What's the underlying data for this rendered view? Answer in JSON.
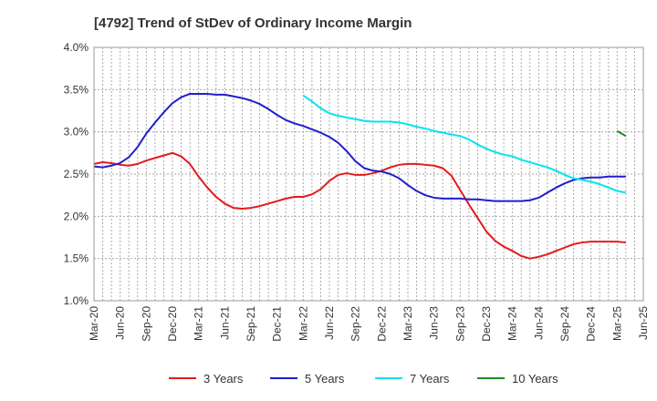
{
  "chart_data": {
    "type": "line",
    "title": "[4792]  Trend of StDev of Ordinary Income Margin",
    "xlabel": "",
    "ylabel": "",
    "ylim": [
      1.0,
      4.0
    ],
    "y_ticks": [
      "1.0%",
      "1.5%",
      "2.0%",
      "2.5%",
      "3.0%",
      "3.5%",
      "4.0%"
    ],
    "x_ticks": [
      "Mar-20",
      "Jun-20",
      "Sep-20",
      "Dec-20",
      "Mar-21",
      "Jun-21",
      "Sep-21",
      "Dec-21",
      "Mar-22",
      "Jun-22",
      "Sep-22",
      "Dec-22",
      "Mar-23",
      "Jun-23",
      "Sep-23",
      "Dec-23",
      "Mar-24",
      "Jun-24",
      "Sep-24",
      "Dec-24",
      "Mar-25",
      "Jun-25"
    ],
    "x_unit": "month",
    "grid": true,
    "legend_position": "bottom",
    "series": [
      {
        "name": "3 Years",
        "color": "#e31a1c",
        "points": [
          [
            "2020-03",
            2.62
          ],
          [
            "2020-04",
            2.64
          ],
          [
            "2020-05",
            2.63
          ],
          [
            "2020-06",
            2.61
          ],
          [
            "2020-07",
            2.6
          ],
          [
            "2020-08",
            2.62
          ],
          [
            "2020-09",
            2.66
          ],
          [
            "2020-10",
            2.69
          ],
          [
            "2020-11",
            2.72
          ],
          [
            "2020-12",
            2.75
          ],
          [
            "2021-01",
            2.71
          ],
          [
            "2021-02",
            2.62
          ],
          [
            "2021-03",
            2.47
          ],
          [
            "2021-04",
            2.34
          ],
          [
            "2021-05",
            2.23
          ],
          [
            "2021-06",
            2.15
          ],
          [
            "2021-07",
            2.1
          ],
          [
            "2021-08",
            2.09
          ],
          [
            "2021-09",
            2.1
          ],
          [
            "2021-10",
            2.12
          ],
          [
            "2021-11",
            2.15
          ],
          [
            "2021-12",
            2.18
          ],
          [
            "2022-01",
            2.21
          ],
          [
            "2022-02",
            2.23
          ],
          [
            "2022-03",
            2.23
          ],
          [
            "2022-04",
            2.26
          ],
          [
            "2022-05",
            2.32
          ],
          [
            "2022-06",
            2.42
          ],
          [
            "2022-07",
            2.49
          ],
          [
            "2022-08",
            2.51
          ],
          [
            "2022-09",
            2.49
          ],
          [
            "2022-10",
            2.49
          ],
          [
            "2022-11",
            2.51
          ],
          [
            "2022-12",
            2.54
          ],
          [
            "2023-01",
            2.58
          ],
          [
            "2023-02",
            2.61
          ],
          [
            "2023-03",
            2.62
          ],
          [
            "2023-04",
            2.62
          ],
          [
            "2023-05",
            2.61
          ],
          [
            "2023-06",
            2.6
          ],
          [
            "2023-07",
            2.57
          ],
          [
            "2023-08",
            2.48
          ],
          [
            "2023-09",
            2.31
          ],
          [
            "2023-10",
            2.14
          ],
          [
            "2023-11",
            1.98
          ],
          [
            "2023-12",
            1.82
          ],
          [
            "2024-01",
            1.71
          ],
          [
            "2024-02",
            1.64
          ],
          [
            "2024-03",
            1.59
          ],
          [
            "2024-04",
            1.53
          ],
          [
            "2024-05",
            1.5
          ],
          [
            "2024-06",
            1.52
          ],
          [
            "2024-07",
            1.55
          ],
          [
            "2024-08",
            1.59
          ],
          [
            "2024-09",
            1.63
          ],
          [
            "2024-10",
            1.67
          ],
          [
            "2024-11",
            1.69
          ],
          [
            "2024-12",
            1.7
          ],
          [
            "2025-01",
            1.7
          ],
          [
            "2025-02",
            1.7
          ],
          [
            "2025-03",
            1.7
          ],
          [
            "2025-04",
            1.69
          ]
        ]
      },
      {
        "name": "5 Years",
        "color": "#1f1fcc",
        "points": [
          [
            "2020-03",
            2.59
          ],
          [
            "2020-04",
            2.58
          ],
          [
            "2020-05",
            2.6
          ],
          [
            "2020-06",
            2.63
          ],
          [
            "2020-07",
            2.7
          ],
          [
            "2020-08",
            2.82
          ],
          [
            "2020-09",
            2.98
          ],
          [
            "2020-10",
            3.11
          ],
          [
            "2020-11",
            3.23
          ],
          [
            "2020-12",
            3.34
          ],
          [
            "2021-01",
            3.41
          ],
          [
            "2021-02",
            3.45
          ],
          [
            "2021-03",
            3.45
          ],
          [
            "2021-04",
            3.45
          ],
          [
            "2021-05",
            3.44
          ],
          [
            "2021-06",
            3.44
          ],
          [
            "2021-07",
            3.42
          ],
          [
            "2021-08",
            3.4
          ],
          [
            "2021-09",
            3.37
          ],
          [
            "2021-10",
            3.33
          ],
          [
            "2021-11",
            3.27
          ],
          [
            "2021-12",
            3.2
          ],
          [
            "2022-01",
            3.14
          ],
          [
            "2022-02",
            3.1
          ],
          [
            "2022-03",
            3.07
          ],
          [
            "2022-04",
            3.03
          ],
          [
            "2022-05",
            2.99
          ],
          [
            "2022-06",
            2.94
          ],
          [
            "2022-07",
            2.87
          ],
          [
            "2022-08",
            2.77
          ],
          [
            "2022-09",
            2.65
          ],
          [
            "2022-10",
            2.57
          ],
          [
            "2022-11",
            2.54
          ],
          [
            "2022-12",
            2.53
          ],
          [
            "2023-01",
            2.5
          ],
          [
            "2023-02",
            2.45
          ],
          [
            "2023-03",
            2.37
          ],
          [
            "2023-04",
            2.3
          ],
          [
            "2023-05",
            2.25
          ],
          [
            "2023-06",
            2.22
          ],
          [
            "2023-07",
            2.21
          ],
          [
            "2023-08",
            2.21
          ],
          [
            "2023-09",
            2.21
          ],
          [
            "2023-10",
            2.2
          ],
          [
            "2023-11",
            2.2
          ],
          [
            "2023-12",
            2.19
          ],
          [
            "2024-01",
            2.18
          ],
          [
            "2024-02",
            2.18
          ],
          [
            "2024-03",
            2.18
          ],
          [
            "2024-04",
            2.18
          ],
          [
            "2024-05",
            2.19
          ],
          [
            "2024-06",
            2.22
          ],
          [
            "2024-07",
            2.28
          ],
          [
            "2024-08",
            2.34
          ],
          [
            "2024-09",
            2.39
          ],
          [
            "2024-10",
            2.43
          ],
          [
            "2024-11",
            2.45
          ],
          [
            "2024-12",
            2.46
          ],
          [
            "2025-01",
            2.46
          ],
          [
            "2025-02",
            2.47
          ],
          [
            "2025-03",
            2.47
          ],
          [
            "2025-04",
            2.47
          ]
        ]
      },
      {
        "name": "7 Years",
        "color": "#00e5ee",
        "points": [
          [
            "2022-03",
            3.43
          ],
          [
            "2022-04",
            3.36
          ],
          [
            "2022-05",
            3.28
          ],
          [
            "2022-06",
            3.22
          ],
          [
            "2022-07",
            3.19
          ],
          [
            "2022-08",
            3.17
          ],
          [
            "2022-09",
            3.15
          ],
          [
            "2022-10",
            3.13
          ],
          [
            "2022-11",
            3.12
          ],
          [
            "2022-12",
            3.12
          ],
          [
            "2023-01",
            3.12
          ],
          [
            "2023-02",
            3.11
          ],
          [
            "2023-03",
            3.09
          ],
          [
            "2023-04",
            3.06
          ],
          [
            "2023-05",
            3.04
          ],
          [
            "2023-06",
            3.01
          ],
          [
            "2023-07",
            2.99
          ],
          [
            "2023-08",
            2.97
          ],
          [
            "2023-09",
            2.95
          ],
          [
            "2023-10",
            2.91
          ],
          [
            "2023-11",
            2.85
          ],
          [
            "2023-12",
            2.8
          ],
          [
            "2024-01",
            2.76
          ],
          [
            "2024-02",
            2.73
          ],
          [
            "2024-03",
            2.71
          ],
          [
            "2024-04",
            2.67
          ],
          [
            "2024-05",
            2.64
          ],
          [
            "2024-06",
            2.61
          ],
          [
            "2024-07",
            2.58
          ],
          [
            "2024-08",
            2.54
          ],
          [
            "2024-09",
            2.49
          ],
          [
            "2024-10",
            2.45
          ],
          [
            "2024-11",
            2.43
          ],
          [
            "2024-12",
            2.41
          ],
          [
            "2025-01",
            2.38
          ],
          [
            "2025-02",
            2.34
          ],
          [
            "2025-03",
            2.3
          ],
          [
            "2025-04",
            2.28
          ]
        ]
      },
      {
        "name": "10 Years",
        "color": "#228b22",
        "points": [
          [
            "2025-03",
            3.01
          ],
          [
            "2025-04",
            2.95
          ]
        ]
      }
    ]
  }
}
